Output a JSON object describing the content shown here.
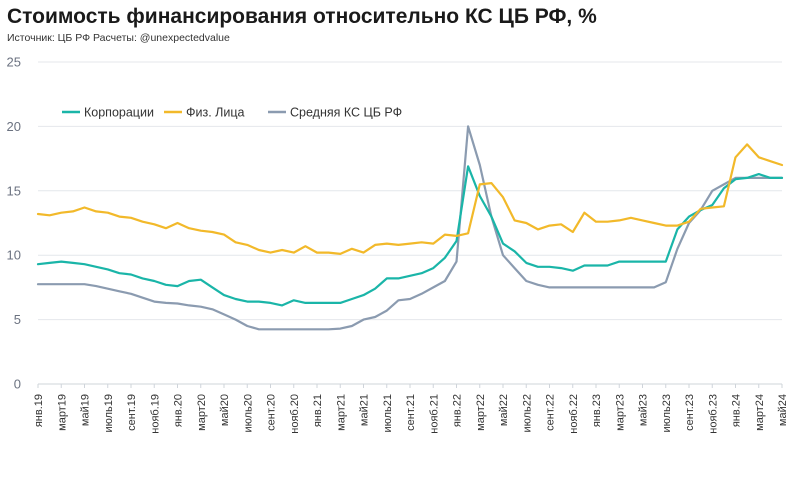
{
  "header": {
    "title": "Стоимость финансирования относительно КС ЦБ РФ, %",
    "source": "Источник: ЦБ РФ Расчеты: @unexpectedvalue"
  },
  "chart_data": {
    "type": "line",
    "title": "Стоимость финансирования относительно КС ЦБ РФ, %",
    "subtitle": "Источник: ЦБ РФ Расчеты: @unexpectedvalue",
    "xlabel": "",
    "ylabel": "",
    "ylim": [
      0,
      25
    ],
    "yticks": [
      0,
      5,
      10,
      15,
      20,
      25
    ],
    "grid": "horizontal",
    "legend_position": "top-left",
    "x_tick_labels": [
      "янв.19",
      "март19",
      "май19",
      "июль19",
      "сент.19",
      "нояб.19",
      "янв.20",
      "март20",
      "май20",
      "июль20",
      "сент.20",
      "нояб.20",
      "янв.21",
      "март21",
      "май21",
      "июль21",
      "сент.21",
      "нояб.21",
      "янв.22",
      "март22",
      "май22",
      "июль22",
      "сент.22",
      "нояб.22",
      "янв.23",
      "март23",
      "май23",
      "июль23",
      "сент.23",
      "нояб.23",
      "янв.24",
      "март24",
      "май24"
    ],
    "x": [
      "янв.19",
      "фев.19",
      "март19",
      "апр.19",
      "май19",
      "июнь19",
      "июль19",
      "авг.19",
      "сент.19",
      "окт.19",
      "нояб.19",
      "дек.19",
      "янв.20",
      "фев.20",
      "март20",
      "апр.20",
      "май20",
      "июнь20",
      "июль20",
      "авг.20",
      "сент.20",
      "окт.20",
      "нояб.20",
      "дек.20",
      "янв.21",
      "фев.21",
      "март21",
      "апр.21",
      "май21",
      "июнь21",
      "июль21",
      "авг.21",
      "сент.21",
      "окт.21",
      "нояб.21",
      "дек.21",
      "янв.22",
      "фев.22",
      "март22",
      "апр.22",
      "май22",
      "июнь22",
      "июль22",
      "авг.22",
      "сент.22",
      "окт.22",
      "нояб.22",
      "дек.22",
      "янв.23",
      "фев.23",
      "март23",
      "апр.23",
      "май23",
      "июнь23",
      "июль23",
      "авг.23",
      "сент.23",
      "окт.23",
      "нояб.23",
      "дек.23",
      "янв.24",
      "фев.24",
      "март24",
      "апр.24",
      "май24"
    ],
    "series": [
      {
        "name": "Корпорации",
        "color": "#1ab5a8",
        "values": [
          9.3,
          9.4,
          9.5,
          9.4,
          9.3,
          9.1,
          8.9,
          8.6,
          8.5,
          8.2,
          8.0,
          7.7,
          7.6,
          8.0,
          8.1,
          7.5,
          6.9,
          6.6,
          6.4,
          6.4,
          6.3,
          6.1,
          6.5,
          6.3,
          6.3,
          6.3,
          6.3,
          6.6,
          6.9,
          7.4,
          8.2,
          8.2,
          8.4,
          8.6,
          9.0,
          9.8,
          11.1,
          16.9,
          14.6,
          13.0,
          10.9,
          10.3,
          9.4,
          9.1,
          9.1,
          9.0,
          8.8,
          9.2,
          9.2,
          9.2,
          9.5,
          9.5,
          9.5,
          9.5,
          9.5,
          12.0,
          13.0,
          13.5,
          13.9,
          15.2,
          15.9,
          16.0,
          16.3,
          16.0,
          16.0
        ]
      },
      {
        "name": "Физ. Лица",
        "color": "#f2b92a",
        "values": [
          13.2,
          13.1,
          13.3,
          13.4,
          13.7,
          13.4,
          13.3,
          13.0,
          12.9,
          12.6,
          12.4,
          12.1,
          12.5,
          12.1,
          11.9,
          11.8,
          11.6,
          11.0,
          10.8,
          10.4,
          10.2,
          10.4,
          10.2,
          10.7,
          10.2,
          10.2,
          10.1,
          10.5,
          10.2,
          10.8,
          10.9,
          10.8,
          10.9,
          11.0,
          10.9,
          11.6,
          11.5,
          11.7,
          15.5,
          15.6,
          14.5,
          12.7,
          12.5,
          12.0,
          12.3,
          12.4,
          11.8,
          13.3,
          12.6,
          12.6,
          12.7,
          12.9,
          12.7,
          12.5,
          12.3,
          12.3,
          12.6,
          13.6,
          13.7,
          13.8,
          17.6,
          18.6,
          17.6,
          17.3,
          17.0
        ]
      },
      {
        "name": "Средняя КС ЦБ РФ",
        "color": "#8b9bb0",
        "values": [
          7.75,
          7.75,
          7.75,
          7.75,
          7.75,
          7.6,
          7.4,
          7.2,
          7.0,
          6.7,
          6.4,
          6.3,
          6.25,
          6.1,
          6.0,
          5.8,
          5.4,
          5.0,
          4.5,
          4.25,
          4.25,
          4.25,
          4.25,
          4.25,
          4.25,
          4.25,
          4.3,
          4.5,
          5.0,
          5.2,
          5.7,
          6.5,
          6.6,
          7.0,
          7.5,
          8.0,
          9.5,
          20.0,
          17.0,
          13.0,
          10.0,
          9.0,
          8.0,
          7.7,
          7.5,
          7.5,
          7.5,
          7.5,
          7.5,
          7.5,
          7.5,
          7.5,
          7.5,
          7.5,
          7.9,
          10.5,
          12.5,
          13.5,
          15.0,
          15.5,
          16.0,
          16.0,
          16.0,
          16.0,
          16.0
        ]
      }
    ]
  }
}
